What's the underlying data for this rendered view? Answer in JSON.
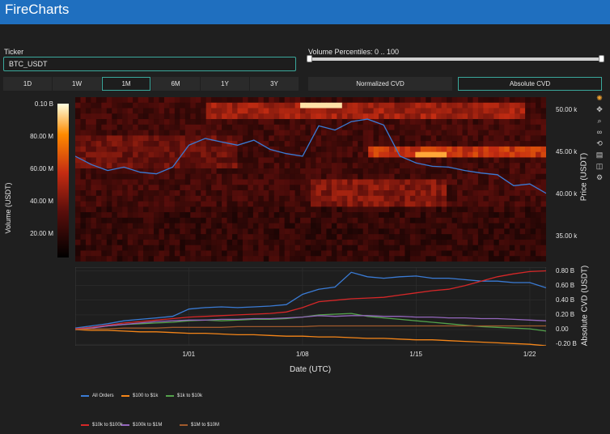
{
  "app": {
    "title": "FireCharts"
  },
  "ticker": {
    "label": "Ticker",
    "value": "BTC_USDT"
  },
  "volume_percentiles": {
    "label": "Volume Percentiles: 0 .. 100",
    "min": 0,
    "max": 100
  },
  "timeframes": [
    {
      "label": "1D",
      "active": false
    },
    {
      "label": "1W",
      "active": false
    },
    {
      "label": "1M",
      "active": true
    },
    {
      "label": "6M",
      "active": false
    },
    {
      "label": "1Y",
      "active": false
    },
    {
      "label": "3Y",
      "active": false
    }
  ],
  "cvd_modes": [
    {
      "label": "Normalized CVD",
      "active": false
    },
    {
      "label": "Absolute CVD",
      "active": true
    }
  ],
  "modebar_icons": [
    "plotly-logo-icon",
    "pan-icon",
    "zoom-icon",
    "lasso-icon",
    "reset-icon",
    "download-icon",
    "camera-icon",
    "settings-icon"
  ],
  "chart_data": [
    {
      "type": "heatmap",
      "colorbar": {
        "title": "Volume (USDT)",
        "ticks": [
          "0.10 B",
          "80.00 M",
          "60.00 M",
          "40.00 M",
          "20.00 M"
        ],
        "range": [
          0,
          100000000
        ],
        "colorscale": [
          "#000000",
          "#5a0e0b",
          "#c42c12",
          "#ff8a00",
          "#ffffe0"
        ]
      },
      "y_right_label": "Price (USDT)",
      "y_right_ticks": [
        "50.00 k",
        "45.00 k",
        "40.00 k",
        "35.00 k"
      ],
      "ylim": [
        32000,
        51500
      ],
      "price_series": {
        "name": "Price",
        "color": "#3a7bd5",
        "x": [
          "2021-12-25",
          "2021-12-26",
          "2021-12-27",
          "2021-12-28",
          "2021-12-29",
          "2021-12-30",
          "2021-12-31",
          "2022-01-01",
          "2022-01-02",
          "2022-01-03",
          "2022-01-04",
          "2022-01-05",
          "2022-01-06",
          "2022-01-07",
          "2022-01-08",
          "2022-01-09",
          "2022-01-10",
          "2022-01-11",
          "2022-01-12",
          "2022-01-13",
          "2022-01-14",
          "2022-01-15",
          "2022-01-16",
          "2022-01-17",
          "2022-01-18",
          "2022-01-19",
          "2022-01-20",
          "2022-01-21",
          "2022-01-22",
          "2022-01-23"
        ],
        "values": [
          44500,
          43500,
          42800,
          43200,
          42600,
          42400,
          43200,
          45800,
          46600,
          46200,
          45800,
          46400,
          45300,
          44800,
          44500,
          48100,
          47600,
          48600,
          48900,
          48200,
          44500,
          43700,
          43300,
          43200,
          42800,
          42500,
          42300,
          41000,
          41200,
          40100
        ]
      }
    },
    {
      "type": "line",
      "title": "",
      "xlabel": "Date (UTC)",
      "ylabel": "Absolute CVD (USDT)",
      "x_ticks": [
        "1/01",
        "1/08",
        "1/15",
        "1/22"
      ],
      "y_ticks": [
        "0.80 B",
        "0.60 B",
        "0.40 B",
        "0.20 B",
        "0.00",
        "-0.20 B"
      ],
      "ylim": [
        -0.22,
        0.85
      ],
      "x": [
        "2021-12-25",
        "2021-12-26",
        "2021-12-27",
        "2021-12-28",
        "2021-12-29",
        "2021-12-30",
        "2021-12-31",
        "2022-01-01",
        "2022-01-02",
        "2022-01-03",
        "2022-01-04",
        "2022-01-05",
        "2022-01-06",
        "2022-01-07",
        "2022-01-08",
        "2022-01-09",
        "2022-01-10",
        "2022-01-11",
        "2022-01-12",
        "2022-01-13",
        "2022-01-14",
        "2022-01-15",
        "2022-01-16",
        "2022-01-17",
        "2022-01-18",
        "2022-01-19",
        "2022-01-20",
        "2022-01-21",
        "2022-01-22",
        "2022-01-23"
      ],
      "series": [
        {
          "name": "All Orders",
          "color": "#3a7bd5",
          "values": [
            0.02,
            0.05,
            0.08,
            0.12,
            0.14,
            0.16,
            0.18,
            0.28,
            0.3,
            0.31,
            0.3,
            0.31,
            0.32,
            0.34,
            0.48,
            0.55,
            0.58,
            0.78,
            0.72,
            0.7,
            0.72,
            0.73,
            0.7,
            0.7,
            0.68,
            0.66,
            0.66,
            0.64,
            0.64,
            0.57
          ]
        },
        {
          "name": "$100 to $1k",
          "color": "#f58518",
          "values": [
            0.0,
            -0.01,
            -0.01,
            -0.02,
            -0.03,
            -0.03,
            -0.04,
            -0.05,
            -0.05,
            -0.06,
            -0.07,
            -0.07,
            -0.08,
            -0.09,
            -0.09,
            -0.1,
            -0.1,
            -0.11,
            -0.12,
            -0.12,
            -0.13,
            -0.14,
            -0.14,
            -0.15,
            -0.16,
            -0.17,
            -0.18,
            -0.19,
            -0.2,
            -0.22
          ]
        },
        {
          "name": "$1k to $10k",
          "color": "#54a24b",
          "values": [
            0.01,
            0.03,
            0.05,
            0.07,
            0.08,
            0.09,
            0.1,
            0.12,
            0.13,
            0.12,
            0.13,
            0.14,
            0.14,
            0.15,
            0.17,
            0.2,
            0.21,
            0.22,
            0.18,
            0.16,
            0.14,
            0.12,
            0.1,
            0.08,
            0.06,
            0.04,
            0.03,
            0.02,
            0.01,
            -0.02
          ]
        },
        {
          "name": "$10k to $100k",
          "color": "#d62728",
          "values": [
            0.01,
            0.03,
            0.06,
            0.09,
            0.11,
            0.13,
            0.15,
            0.17,
            0.18,
            0.19,
            0.2,
            0.21,
            0.22,
            0.24,
            0.3,
            0.38,
            0.4,
            0.42,
            0.43,
            0.44,
            0.47,
            0.5,
            0.53,
            0.55,
            0.6,
            0.66,
            0.72,
            0.76,
            0.79,
            0.8
          ]
        },
        {
          "name": "$100k to $1M",
          "color": "#9467bd",
          "values": [
            0.0,
            0.02,
            0.05,
            0.07,
            0.09,
            0.11,
            0.12,
            0.13,
            0.13,
            0.14,
            0.14,
            0.15,
            0.15,
            0.16,
            0.17,
            0.19,
            0.18,
            0.19,
            0.19,
            0.18,
            0.18,
            0.17,
            0.17,
            0.16,
            0.16,
            0.15,
            0.15,
            0.14,
            0.13,
            0.12
          ]
        },
        {
          "name": "$1M to $10M",
          "color": "#a05a2c",
          "values": [
            0.0,
            0.01,
            0.01,
            0.02,
            0.02,
            0.02,
            0.03,
            0.03,
            0.03,
            0.03,
            0.04,
            0.04,
            0.04,
            0.04,
            0.04,
            0.05,
            0.05,
            0.05,
            0.05,
            0.05,
            0.05,
            0.05,
            0.05,
            0.05,
            0.05,
            0.05,
            0.05,
            0.05,
            0.05,
            0.05
          ]
        }
      ]
    }
  ]
}
